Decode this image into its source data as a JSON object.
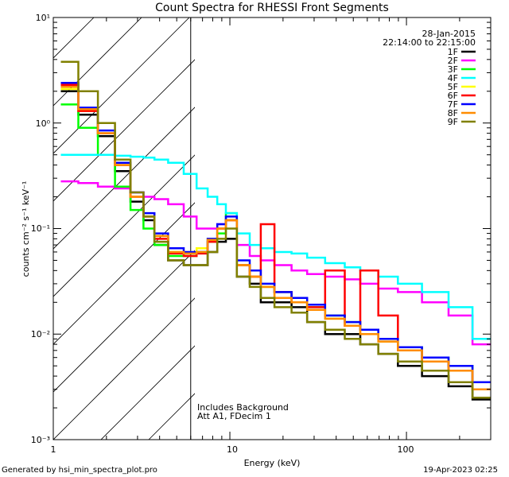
{
  "footer": {
    "generated_by": "Generated by hsi_min_spectra_plot.pro",
    "timestamp": "19-Apr-2023 02:25"
  },
  "chart_data": {
    "type": "line",
    "title": "Count Spectra for RHESSI Front Segments",
    "xlabel": "Energy (keV)",
    "ylabel": "counts cm⁻² s⁻¹ keV⁻¹",
    "xscale": "log",
    "yscale": "log",
    "xlim": [
      1,
      300
    ],
    "ylim": [
      0.001,
      10
    ],
    "x_tick_labels": [
      "1",
      "10",
      "100"
    ],
    "y_tick_labels": [
      "10⁻³",
      "10⁻²",
      "10⁻¹",
      "10⁰",
      "10¹"
    ],
    "date": "28-Jan-2015",
    "time_range": "22:14:00 to 22:15:00",
    "annotations": [
      "Includes Background",
      "Att A1, FDecim 1"
    ],
    "shaded_region": {
      "x_from": 1,
      "x_to": 6
    },
    "series": [
      {
        "name": "1F",
        "color": "#000000",
        "points": [
          [
            1.2,
            2.0
          ],
          [
            1.6,
            1.2
          ],
          [
            2.0,
            0.75
          ],
          [
            2.5,
            0.35
          ],
          [
            3.0,
            0.18
          ],
          [
            3.5,
            0.12
          ],
          [
            4.0,
            0.07
          ],
          [
            5.0,
            0.05
          ],
          [
            6.0,
            0.045
          ],
          [
            7.0,
            0.045
          ],
          [
            8.0,
            0.06
          ],
          [
            9.0,
            0.075
          ],
          [
            10.0,
            0.08
          ],
          [
            12.0,
            0.035
          ],
          [
            14.0,
            0.03
          ],
          [
            16.0,
            0.02
          ],
          [
            20.0,
            0.02
          ],
          [
            25.0,
            0.018
          ],
          [
            30.0,
            0.013
          ],
          [
            40.0,
            0.01
          ],
          [
            50.0,
            0.01
          ],
          [
            60.0,
            0.008
          ],
          [
            80.0,
            0.0065
          ],
          [
            100.0,
            0.005
          ],
          [
            150.0,
            0.004
          ],
          [
            200.0,
            0.0032
          ],
          [
            280.0,
            0.0024
          ]
        ]
      },
      {
        "name": "2F",
        "color": "#ff00ff",
        "points": [
          [
            1.2,
            0.28
          ],
          [
            1.6,
            0.27
          ],
          [
            2.0,
            0.25
          ],
          [
            2.5,
            0.24
          ],
          [
            3.0,
            0.22
          ],
          [
            3.5,
            0.2
          ],
          [
            4.0,
            0.19
          ],
          [
            5.0,
            0.17
          ],
          [
            6.0,
            0.13
          ],
          [
            7.0,
            0.1
          ],
          [
            8.0,
            0.1
          ],
          [
            9.0,
            0.11
          ],
          [
            10.0,
            0.12
          ],
          [
            12.0,
            0.07
          ],
          [
            14.0,
            0.055
          ],
          [
            16.0,
            0.05
          ],
          [
            20.0,
            0.045
          ],
          [
            25.0,
            0.04
          ],
          [
            30.0,
            0.037
          ],
          [
            40.0,
            0.035
          ],
          [
            50.0,
            0.033
          ],
          [
            60.0,
            0.03
          ],
          [
            80.0,
            0.027
          ],
          [
            100.0,
            0.025
          ],
          [
            150.0,
            0.02
          ],
          [
            200.0,
            0.015
          ],
          [
            280.0,
            0.008
          ]
        ]
      },
      {
        "name": "3F",
        "color": "#00ff00",
        "points": [
          [
            1.2,
            1.5
          ],
          [
            1.6,
            0.9
          ],
          [
            2.0,
            0.5
          ],
          [
            2.5,
            0.25
          ],
          [
            3.0,
            0.15
          ],
          [
            3.5,
            0.1
          ],
          [
            4.0,
            0.07
          ],
          [
            5.0,
            0.055
          ],
          [
            6.0,
            0.055
          ],
          [
            7.0,
            0.06
          ],
          [
            8.0,
            0.075
          ],
          [
            9.0,
            0.09
          ],
          [
            10.0,
            0.14
          ],
          [
            12.0,
            0.045
          ],
          [
            14.0,
            0.035
          ],
          [
            16.0,
            0.028
          ],
          [
            20.0,
            0.025
          ],
          [
            25.0,
            0.02
          ],
          [
            30.0,
            0.018
          ],
          [
            40.0,
            0.015
          ],
          [
            50.0,
            0.013
          ],
          [
            60.0,
            0.011
          ],
          [
            80.0,
            0.009
          ],
          [
            100.0,
            0.0075
          ],
          [
            150.0,
            0.006
          ],
          [
            200.0,
            0.005
          ],
          [
            280.0,
            0.0035
          ]
        ]
      },
      {
        "name": "4F",
        "color": "#00ffff",
        "points": [
          [
            1.2,
            0.5
          ],
          [
            1.6,
            0.5
          ],
          [
            2.0,
            0.5
          ],
          [
            2.5,
            0.49
          ],
          [
            3.0,
            0.48
          ],
          [
            3.5,
            0.47
          ],
          [
            4.0,
            0.45
          ],
          [
            5.0,
            0.42
          ],
          [
            6.0,
            0.33
          ],
          [
            7.0,
            0.24
          ],
          [
            8.0,
            0.2
          ],
          [
            9.0,
            0.17
          ],
          [
            10.0,
            0.14
          ],
          [
            12.0,
            0.09
          ],
          [
            14.0,
            0.07
          ],
          [
            16.0,
            0.065
          ],
          [
            20.0,
            0.06
          ],
          [
            25.0,
            0.058
          ],
          [
            30.0,
            0.053
          ],
          [
            40.0,
            0.047
          ],
          [
            50.0,
            0.043
          ],
          [
            60.0,
            0.04
          ],
          [
            80.0,
            0.035
          ],
          [
            100.0,
            0.03
          ],
          [
            150.0,
            0.025
          ],
          [
            200.0,
            0.018
          ],
          [
            280.0,
            0.009
          ]
        ]
      },
      {
        "name": "5F",
        "color": "#ffff00",
        "points": [
          [
            1.2,
            2.1
          ],
          [
            1.6,
            1.3
          ],
          [
            2.0,
            0.8
          ],
          [
            2.5,
            0.4
          ],
          [
            3.0,
            0.2
          ],
          [
            3.5,
            0.13
          ],
          [
            4.0,
            0.085
          ],
          [
            5.0,
            0.06
          ],
          [
            6.0,
            0.06
          ],
          [
            7.0,
            0.065
          ],
          [
            8.0,
            0.08
          ],
          [
            9.0,
            0.1
          ],
          [
            10.0,
            0.12
          ],
          [
            12.0,
            0.045
          ],
          [
            14.0,
            0.035
          ],
          [
            16.0,
            0.028
          ],
          [
            20.0,
            0.022
          ],
          [
            25.0,
            0.02
          ],
          [
            30.0,
            0.017
          ],
          [
            40.0,
            0.014
          ],
          [
            50.0,
            0.012
          ],
          [
            60.0,
            0.01
          ],
          [
            80.0,
            0.0085
          ],
          [
            100.0,
            0.007
          ],
          [
            150.0,
            0.0055
          ],
          [
            200.0,
            0.0045
          ],
          [
            280.0,
            0.003
          ]
        ]
      },
      {
        "name": "6F",
        "color": "#ff0000",
        "points": [
          [
            1.2,
            2.3
          ],
          [
            1.6,
            1.3
          ],
          [
            2.0,
            0.8
          ],
          [
            2.5,
            0.4
          ],
          [
            3.0,
            0.2
          ],
          [
            3.5,
            0.13
          ],
          [
            4.0,
            0.08
          ],
          [
            5.0,
            0.058
          ],
          [
            6.0,
            0.055
          ],
          [
            7.0,
            0.058
          ],
          [
            8.0,
            0.075
          ],
          [
            9.0,
            0.1
          ],
          [
            10.0,
            0.12
          ],
          [
            12.0,
            0.045
          ],
          [
            14.0,
            0.035
          ],
          [
            16.0,
            0.11
          ],
          [
            20.0,
            0.025
          ],
          [
            25.0,
            0.02
          ],
          [
            30.0,
            0.018
          ],
          [
            40.0,
            0.04
          ],
          [
            50.0,
            0.012
          ],
          [
            60.0,
            0.04
          ],
          [
            80.0,
            0.015
          ],
          [
            100.0,
            0.007
          ],
          [
            150.0,
            0.0055
          ],
          [
            200.0,
            0.0045
          ],
          [
            280.0,
            0.003
          ]
        ]
      },
      {
        "name": "7F",
        "color": "#0000ff",
        "points": [
          [
            1.2,
            2.4
          ],
          [
            1.6,
            1.4
          ],
          [
            2.0,
            0.85
          ],
          [
            2.5,
            0.42
          ],
          [
            3.0,
            0.22
          ],
          [
            3.5,
            0.14
          ],
          [
            4.0,
            0.09
          ],
          [
            5.0,
            0.065
          ],
          [
            6.0,
            0.06
          ],
          [
            7.0,
            0.06
          ],
          [
            8.0,
            0.08
          ],
          [
            9.0,
            0.11
          ],
          [
            10.0,
            0.13
          ],
          [
            12.0,
            0.05
          ],
          [
            14.0,
            0.04
          ],
          [
            16.0,
            0.03
          ],
          [
            20.0,
            0.025
          ],
          [
            25.0,
            0.022
          ],
          [
            30.0,
            0.019
          ],
          [
            40.0,
            0.015
          ],
          [
            50.0,
            0.013
          ],
          [
            60.0,
            0.011
          ],
          [
            80.0,
            0.009
          ],
          [
            100.0,
            0.0075
          ],
          [
            150.0,
            0.006
          ],
          [
            200.0,
            0.005
          ],
          [
            280.0,
            0.0035
          ]
        ]
      },
      {
        "name": "8F",
        "color": "#ff8c00",
        "points": [
          [
            1.2,
            2.2
          ],
          [
            1.6,
            1.35
          ],
          [
            2.0,
            0.8
          ],
          [
            2.5,
            0.4
          ],
          [
            3.0,
            0.2
          ],
          [
            3.5,
            0.13
          ],
          [
            4.0,
            0.085
          ],
          [
            5.0,
            0.06
          ],
          [
            6.0,
            0.058
          ],
          [
            7.0,
            0.06
          ],
          [
            8.0,
            0.078
          ],
          [
            9.0,
            0.1
          ],
          [
            10.0,
            0.12
          ],
          [
            12.0,
            0.045
          ],
          [
            14.0,
            0.035
          ],
          [
            16.0,
            0.028
          ],
          [
            20.0,
            0.022
          ],
          [
            25.0,
            0.02
          ],
          [
            30.0,
            0.017
          ],
          [
            40.0,
            0.014
          ],
          [
            50.0,
            0.012
          ],
          [
            60.0,
            0.01
          ],
          [
            80.0,
            0.0085
          ],
          [
            100.0,
            0.007
          ],
          [
            150.0,
            0.0055
          ],
          [
            200.0,
            0.0045
          ],
          [
            280.0,
            0.003
          ]
        ]
      },
      {
        "name": "9F",
        "color": "#808000",
        "points": [
          [
            1.2,
            3.8
          ],
          [
            1.6,
            2.0
          ],
          [
            2.0,
            1.0
          ],
          [
            2.5,
            0.45
          ],
          [
            3.0,
            0.22
          ],
          [
            3.5,
            0.13
          ],
          [
            4.0,
            0.075
          ],
          [
            5.0,
            0.05
          ],
          [
            6.0,
            0.045
          ],
          [
            7.0,
            0.045
          ],
          [
            8.0,
            0.06
          ],
          [
            9.0,
            0.08
          ],
          [
            10.0,
            0.1
          ],
          [
            12.0,
            0.035
          ],
          [
            14.0,
            0.028
          ],
          [
            16.0,
            0.022
          ],
          [
            20.0,
            0.018
          ],
          [
            25.0,
            0.016
          ],
          [
            30.0,
            0.013
          ],
          [
            40.0,
            0.011
          ],
          [
            50.0,
            0.009
          ],
          [
            60.0,
            0.008
          ],
          [
            80.0,
            0.0065
          ],
          [
            100.0,
            0.0055
          ],
          [
            150.0,
            0.0045
          ],
          [
            200.0,
            0.0035
          ],
          [
            280.0,
            0.0025
          ]
        ]
      }
    ]
  }
}
